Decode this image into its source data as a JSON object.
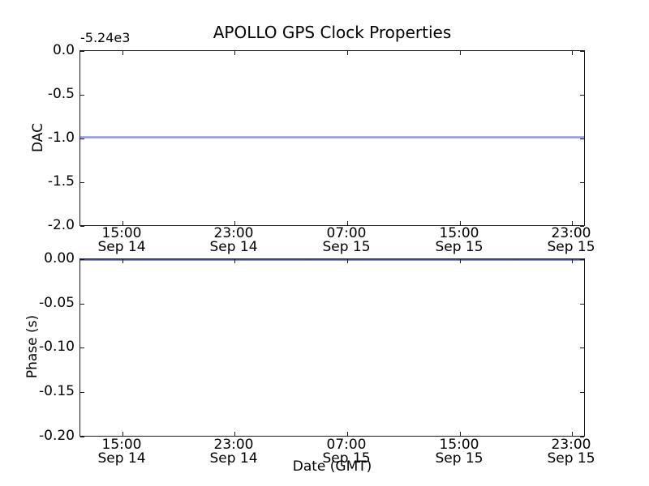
{
  "figure": {
    "background_color": "#ffffff",
    "spine_color": "#000000",
    "accent_line_color": "#0000ff"
  },
  "chart_data": [
    {
      "type": "line",
      "title": "APOLLO GPS Clock Properties",
      "ylabel": "DAC",
      "xlabel": "",
      "y_offset_text": "-5.24e3",
      "ylim": [
        -2.0,
        0.0
      ],
      "yticks": [
        "0.0",
        "-0.5",
        "-1.0",
        "-1.5",
        "-2.0"
      ],
      "xticks": [
        {
          "time": "15:00",
          "date": "Sep 14"
        },
        {
          "time": "23:00",
          "date": "Sep 14"
        },
        {
          "time": "07:00",
          "date": "Sep 15"
        },
        {
          "time": "15:00",
          "date": "Sep 15"
        },
        {
          "time": "23:00",
          "date": "Sep 15"
        }
      ],
      "grid": false,
      "legend": null,
      "series": [
        {
          "name": "DAC",
          "color": "#0000ff",
          "shape": "constant-horizontal-line",
          "y_value": -1.0,
          "note": "flat line at -1.0 across full x range; with axis offset -5.24e3 actual value is approximately -5241"
        }
      ]
    },
    {
      "type": "line",
      "title": "",
      "ylabel": "Phase (s)",
      "xlabel": "Date (GMT)",
      "ylim": [
        -0.2,
        0.0
      ],
      "yticks": [
        "0.00",
        "-0.05",
        "-0.10",
        "-0.15",
        "-0.20"
      ],
      "xticks": [
        {
          "time": "15:00",
          "date": "Sep 14"
        },
        {
          "time": "23:00",
          "date": "Sep 14"
        },
        {
          "time": "07:00",
          "date": "Sep 15"
        },
        {
          "time": "15:00",
          "date": "Sep 15"
        },
        {
          "time": "23:00",
          "date": "Sep 15"
        }
      ],
      "grid": false,
      "legend": null,
      "series": [
        {
          "name": "Phase (s)",
          "color": "#0000ff",
          "shape": "constant-horizontal-line",
          "y_value": 0.0,
          "note": "flat line at 0.00 coinciding with the top spine (renders dark navy)"
        }
      ]
    }
  ]
}
